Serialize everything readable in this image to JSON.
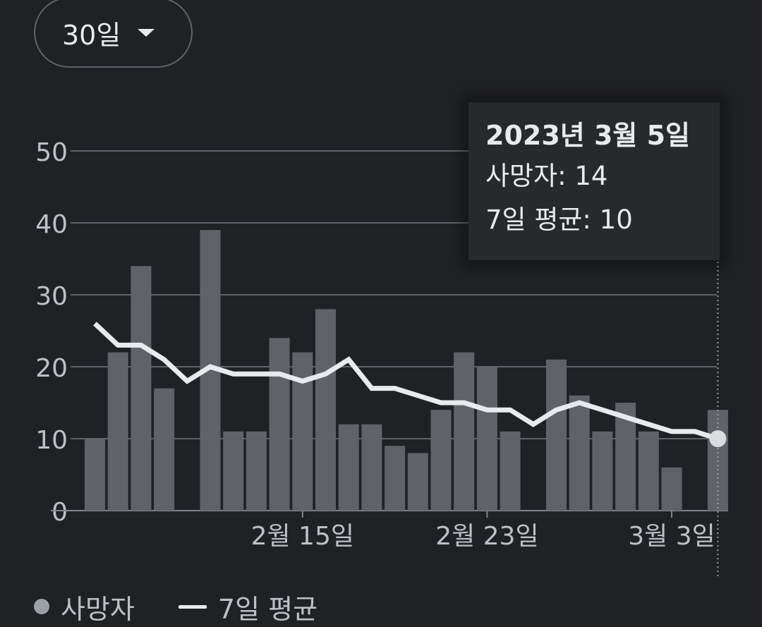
{
  "range_selector": {
    "label": "30일"
  },
  "tooltip": {
    "date": "2023년 3월 5일",
    "deaths_line": "사망자: 14",
    "avg_line": "7일 평균: 10"
  },
  "legend": {
    "deaths": "사망자",
    "avg": "7일 평균"
  },
  "colors": {
    "background": "#202124",
    "bar": "#5f6368",
    "line": "#e8eaed",
    "grid": "#5f6368",
    "text": "#bdc1c6"
  },
  "chart_data": {
    "type": "bar",
    "ylim": [
      0,
      50
    ],
    "y_ticks": [
      0,
      10,
      20,
      30,
      40,
      50
    ],
    "x_tick_labels": [
      {
        "index": 9,
        "label": "2월 15일"
      },
      {
        "index": 17,
        "label": "2월 23일"
      },
      {
        "index": 25,
        "label": "3월 3일"
      }
    ],
    "series": [
      {
        "name": "사망자",
        "type": "bar",
        "values": [
          10,
          22,
          34,
          17,
          null,
          39,
          11,
          11,
          24,
          22,
          28,
          12,
          12,
          9,
          8,
          14,
          22,
          20,
          11,
          null,
          21,
          16,
          11,
          15,
          11,
          6,
          null,
          14
        ]
      },
      {
        "name": "7일 평균",
        "type": "line",
        "values": [
          26,
          23,
          23,
          21,
          18,
          20,
          19,
          19,
          19,
          18,
          19,
          21,
          17,
          17,
          16,
          15,
          15,
          14,
          14,
          12,
          14,
          15,
          14,
          13,
          12,
          11,
          11,
          10
        ]
      }
    ],
    "highlight_index": 27
  }
}
